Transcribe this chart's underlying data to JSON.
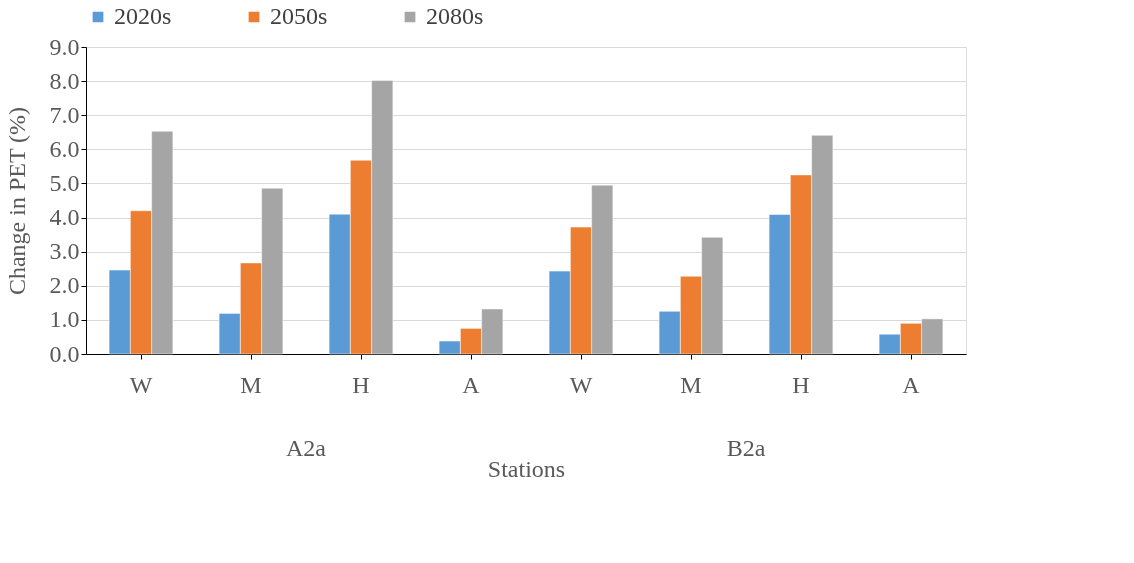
{
  "chart_data": {
    "type": "bar",
    "ylabel": "Change in PET (%)",
    "xlabel": "Stations",
    "categories": [
      "W",
      "M",
      "H",
      "A",
      "W",
      "M",
      "H",
      "A"
    ],
    "series": [
      {
        "name": "2020s",
        "color": "#5b9bd5",
        "values": [
          2.46,
          1.19,
          4.1,
          0.38,
          2.43,
          1.25,
          4.09,
          0.58
        ]
      },
      {
        "name": "2050s",
        "color": "#ed7d31",
        "values": [
          4.2,
          2.67,
          5.68,
          0.75,
          3.72,
          2.28,
          5.25,
          0.9
        ]
      },
      {
        "name": "2080s",
        "color": "#a5a5a5",
        "values": [
          6.53,
          4.86,
          8.02,
          1.32,
          4.95,
          3.42,
          6.41,
          1.03
        ]
      }
    ],
    "annotations": [
      "A2a",
      "B2a"
    ],
    "ylim": [
      0,
      9
    ],
    "yticks": [
      {
        "value": 0,
        "label": "0.0"
      },
      {
        "value": 1,
        "label": "1.0"
      },
      {
        "value": 2,
        "label": "2.0"
      },
      {
        "value": 3,
        "label": "3.0"
      },
      {
        "value": 4,
        "label": "4.0"
      },
      {
        "value": 5,
        "label": "5.0"
      },
      {
        "value": 6,
        "label": "6.0"
      },
      {
        "value": 7,
        "label": "7.0"
      },
      {
        "value": 8,
        "label": "8.0"
      },
      {
        "value": 9,
        "label": "9.0"
      }
    ],
    "grid": "y",
    "legend": "top"
  }
}
